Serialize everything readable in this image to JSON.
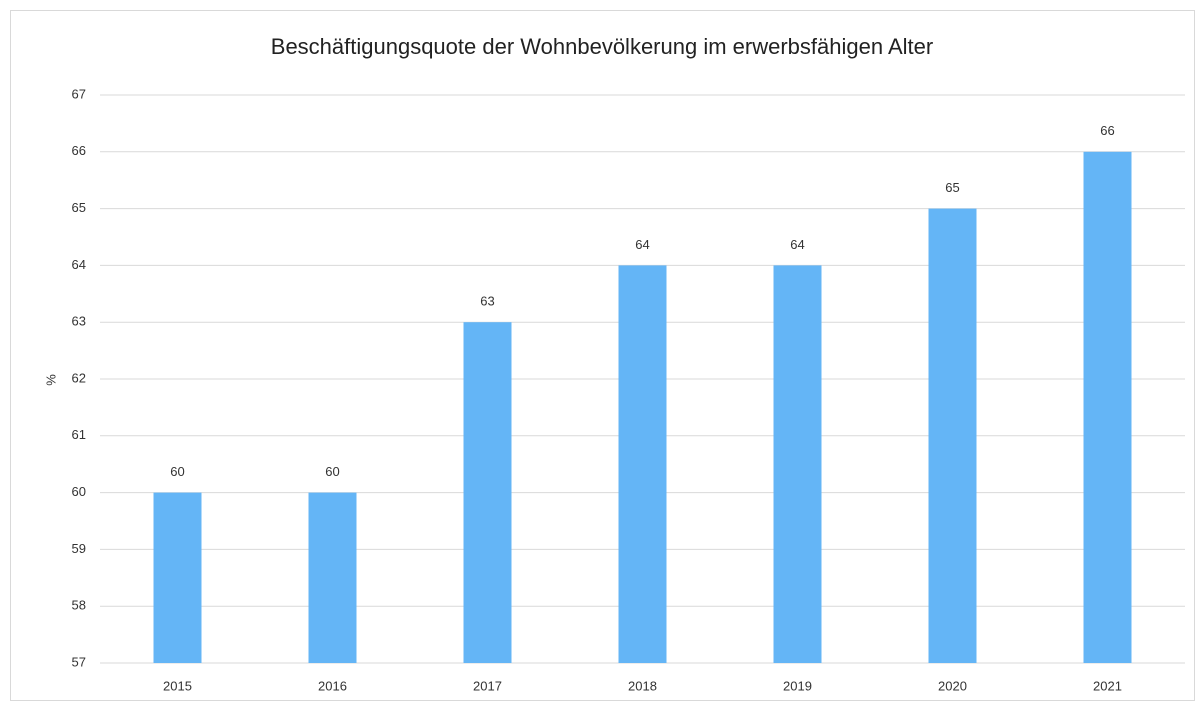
{
  "chart_data": {
    "type": "bar",
    "title": "Beschäftigungsquote der Wohnbevölkerung im erwerbsfähigen Alter",
    "y_label": "%",
    "categories": [
      "2015",
      "2016",
      "2017",
      "2018",
      "2019",
      "2020",
      "2021"
    ],
    "values": [
      60,
      60,
      63,
      64,
      64,
      65,
      66
    ],
    "color": "#64b5f6",
    "ylim": [
      57,
      67
    ],
    "yticks": [
      57,
      58,
      59,
      60,
      61,
      62,
      63,
      64,
      65,
      66,
      67
    ],
    "grid": true
  }
}
